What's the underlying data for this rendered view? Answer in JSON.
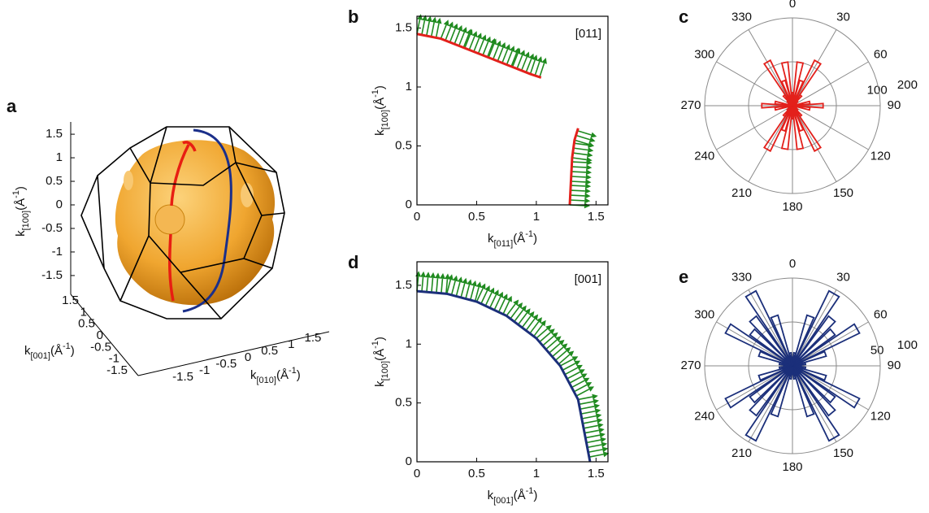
{
  "chart_data": [
    {
      "type": "surface3d",
      "panel": "a",
      "zlabel": [
        "k",
        "[100]",
        "(Å",
        "-1",
        ")"
      ],
      "xlabel": [
        "k",
        "[001]",
        "(Å",
        "-1",
        ")"
      ],
      "ylabel": [
        "k",
        "[010]",
        "(Å",
        "-1",
        ")"
      ],
      "zlim": [
        -1.7,
        1.7
      ],
      "zticks": [
        1.5,
        1,
        0.5,
        0,
        -0.5,
        -1,
        -1.5
      ],
      "xlim": [
        -1.7,
        1.7
      ],
      "xticks": [
        1.5,
        1,
        0.5,
        0,
        -0.5,
        -1,
        -1.5
      ],
      "ylim": [
        -1.7,
        1.7
      ],
      "yticks": [
        -1.5,
        -1,
        -0.5,
        0,
        0.5,
        1,
        1.5
      ]
    },
    {
      "type": "line",
      "panel": "b",
      "annotation": "[011]",
      "annotation_color": "#e3201b",
      "x": [
        0,
        0.2,
        0.4,
        0.6,
        0.8,
        0.95,
        1.04,
        1.2,
        1.28,
        1.29,
        1.3,
        1.32,
        1.35
      ],
      "values": [
        1.45,
        1.41,
        1.33,
        1.25,
        1.17,
        1.11,
        1.08,
        null,
        0,
        0.2,
        0.4,
        0.55,
        0.65
      ],
      "color": "#e3201b",
      "arrow_color": "#1f8a1f",
      "xlim": [
        0,
        1.6
      ],
      "ylim": [
        0,
        1.6
      ],
      "xticks": [
        0,
        0.5,
        1,
        1.5
      ],
      "yticks": [
        0,
        0.5,
        1,
        1.5
      ],
      "xlabel": [
        "k",
        "[011]",
        "(Å",
        "-1",
        ")"
      ],
      "ylabel": [
        "k",
        "[100]",
        "(Å",
        "-1",
        ")"
      ]
    },
    {
      "type": "rose",
      "panel": "c",
      "color": "#e3201b",
      "theta": [
        0,
        10,
        20,
        30,
        40,
        50,
        60,
        70,
        80,
        90,
        100,
        110,
        120,
        130,
        140,
        150,
        160,
        170,
        180,
        190,
        200,
        210,
        220,
        230,
        240,
        250,
        260,
        270,
        280,
        290,
        300,
        310,
        320,
        330,
        340,
        350
      ],
      "values": [
        30,
        100,
        60,
        115,
        30,
        15,
        10,
        10,
        40,
        70,
        40,
        10,
        10,
        15,
        30,
        115,
        60,
        100,
        30,
        100,
        60,
        115,
        30,
        15,
        10,
        10,
        40,
        70,
        40,
        10,
        10,
        15,
        30,
        115,
        60,
        100
      ],
      "rlim": [
        0,
        200
      ],
      "rticks": [
        100,
        200
      ],
      "thetaticks": [
        0,
        30,
        60,
        90,
        120,
        150,
        180,
        210,
        240,
        270,
        300,
        330
      ]
    },
    {
      "type": "line",
      "panel": "d",
      "annotation": "[001]",
      "annotation_color": "#1b2f7a",
      "x": [
        0,
        0.25,
        0.5,
        0.75,
        1,
        1.2,
        1.35,
        1.45
      ],
      "values": [
        1.45,
        1.428,
        1.361,
        1.241,
        1.05,
        0.815,
        0.529,
        0
      ],
      "color": "#1b2f7a",
      "arrow_color": "#1f8a1f",
      "xlim": [
        0,
        1.6
      ],
      "ylim": [
        0,
        1.7
      ],
      "xticks": [
        0,
        0.5,
        1,
        1.5
      ],
      "yticks": [
        0,
        0.5,
        1,
        1.5
      ],
      "xlabel": [
        "k",
        "[001]",
        "(Å",
        "-1",
        ")"
      ],
      "ylabel": [
        "k",
        "[100]",
        "(Å",
        "-1",
        ")"
      ]
    },
    {
      "type": "rose",
      "panel": "e",
      "color": "#1b2f7a",
      "theta": [
        0,
        10,
        20,
        30,
        40,
        50,
        60,
        70,
        80,
        90,
        100,
        110,
        120,
        130,
        140,
        150,
        160,
        170,
        180,
        190,
        200,
        210,
        220,
        230,
        240,
        250,
        260,
        270,
        280,
        290,
        300,
        310,
        320,
        330,
        340,
        350
      ],
      "values": [
        10,
        15,
        60,
        95,
        70,
        60,
        85,
        40,
        15,
        10,
        15,
        40,
        85,
        60,
        70,
        95,
        60,
        15,
        10,
        15,
        60,
        95,
        70,
        60,
        85,
        40,
        15,
        10,
        15,
        40,
        85,
        60,
        70,
        95,
        60,
        15
      ],
      "rlim": [
        0,
        100
      ],
      "rticks": [
        50,
        100
      ],
      "thetaticks": [
        0,
        30,
        60,
        90,
        120,
        150,
        180,
        210,
        240,
        270,
        300,
        330
      ]
    }
  ]
}
